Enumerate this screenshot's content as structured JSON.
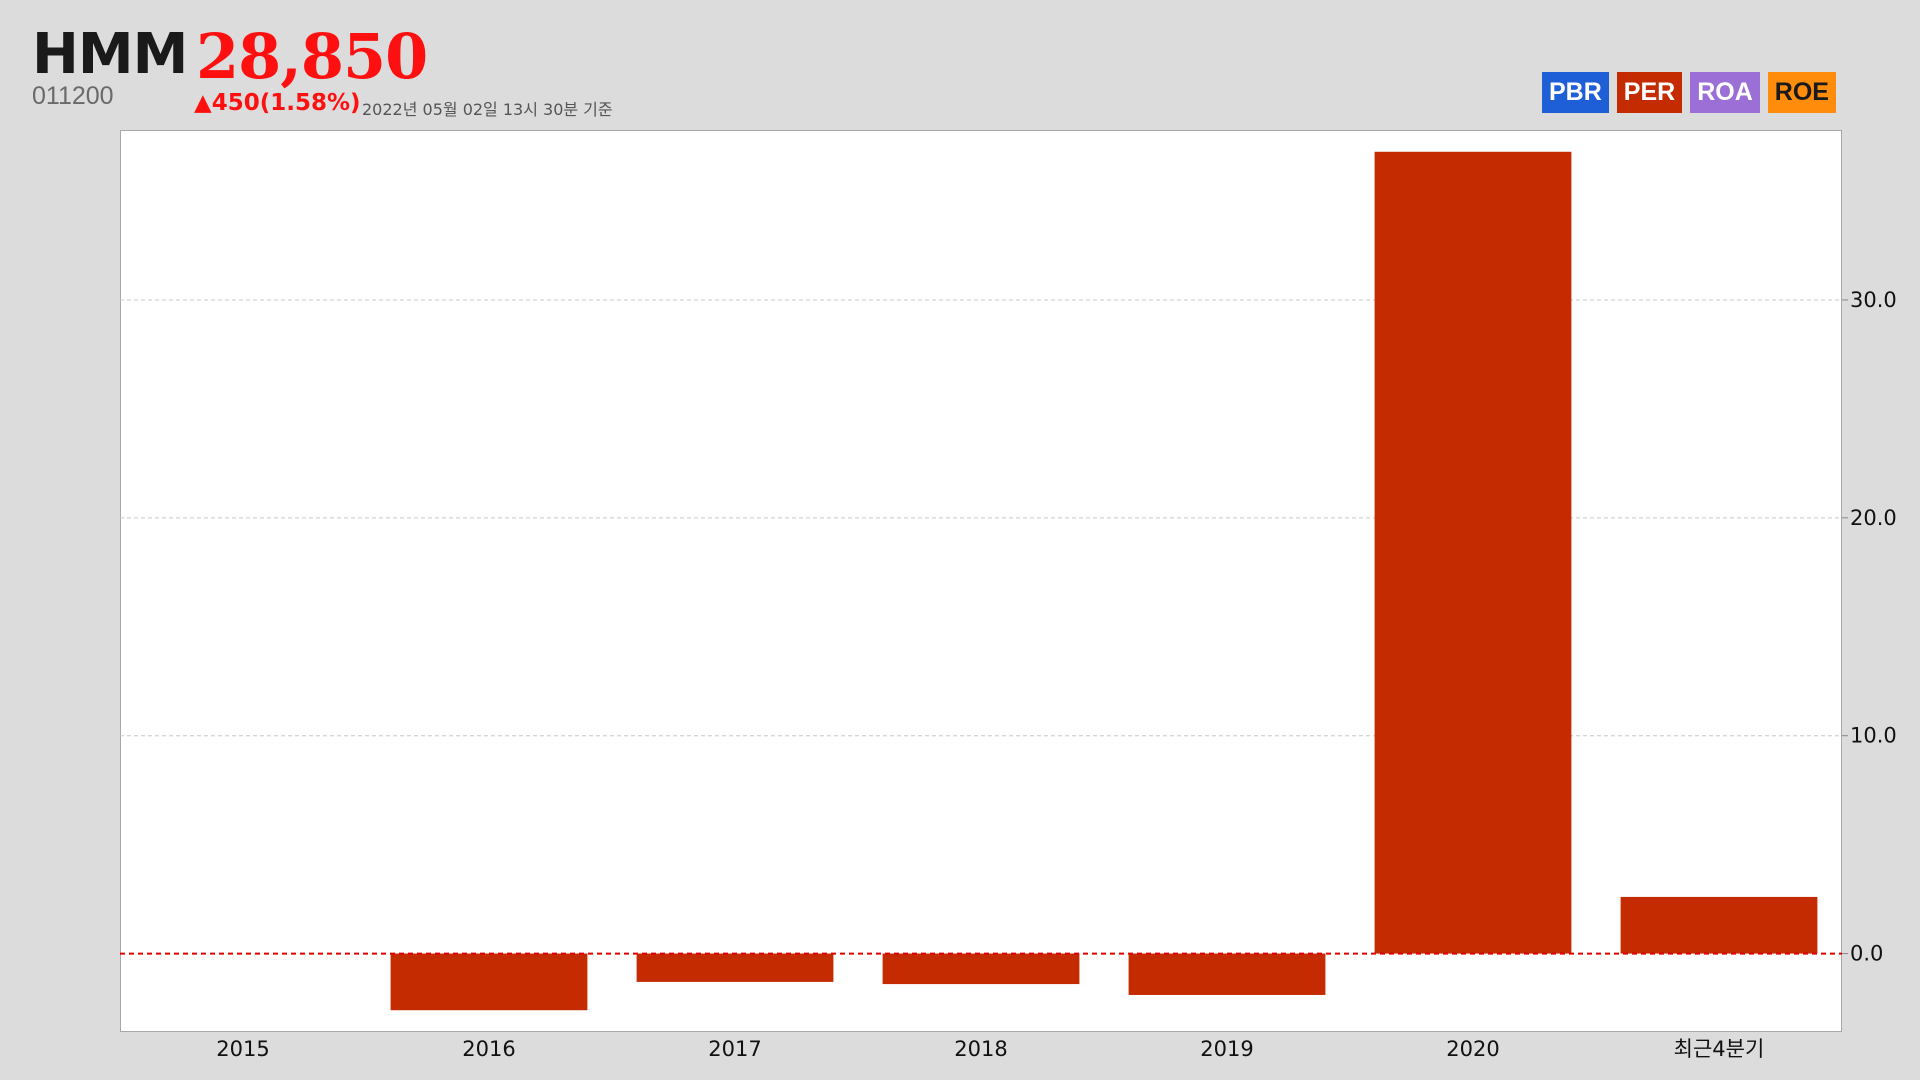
{
  "header": {
    "name": "HMM",
    "price": "28,850",
    "code": "011200",
    "change": "▲450(1.58%)",
    "as_of": "2022년 05월 02일 13시 30분 기준"
  },
  "tabs": [
    {
      "label": "PBR",
      "color": "#1e5fd8"
    },
    {
      "label": "PER",
      "color": "#c42b00"
    },
    {
      "label": "ROA",
      "color": "#9b6fd6"
    },
    {
      "label": "ROE",
      "color": "#ff8c0a"
    }
  ],
  "chart_data": {
    "type": "bar",
    "title": "",
    "xlabel": "",
    "ylabel": "",
    "categories": [
      "2015",
      "2016",
      "2017",
      "2018",
      "2019",
      "2020",
      "최근4분기"
    ],
    "series": [
      {
        "values": [
          null,
          -2.6,
          -1.3,
          -1.4,
          -1.9,
          36.8,
          2.6
        ],
        "color": "#c42b00"
      }
    ],
    "yticks": [
      "0.0",
      "10.0",
      "20.0",
      "30.0"
    ],
    "ylim": [
      -3.6,
      37.8
    ],
    "y_axis_side": "right",
    "grid": true,
    "zero_line_color": "#e00000"
  }
}
